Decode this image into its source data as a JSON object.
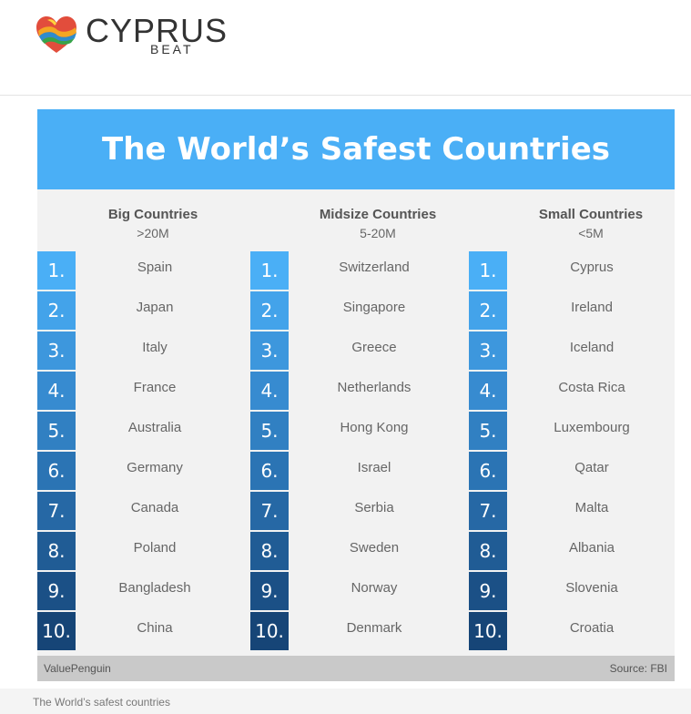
{
  "brand": {
    "name": "CYPRUS",
    "sub": "BEAT"
  },
  "infographic": {
    "title": "The World’s Safest Countries",
    "columns": [
      {
        "title": "Big Countries",
        "subtitle": ">20M",
        "countries": [
          "Spain",
          "Japan",
          "Italy",
          "France",
          "Australia",
          "Germany",
          "Canada",
          "Poland",
          "Bangladesh",
          "China"
        ]
      },
      {
        "title": "Midsize Countries",
        "subtitle": "5-20M",
        "countries": [
          "Switzerland",
          "Singapore",
          "Greece",
          "Netherlands",
          "Hong Kong",
          "Israel",
          "Serbia",
          "Sweden",
          "Norway",
          "Denmark"
        ]
      },
      {
        "title": "Small Countries",
        "subtitle": "<5M",
        "countries": [
          "Cyprus",
          "Ireland",
          "Iceland",
          "Costa Rica",
          "Luxembourg",
          "Qatar",
          "Malta",
          "Albania",
          "Slovenia",
          "Croatia"
        ]
      }
    ],
    "ranks": [
      "1.",
      "2.",
      "3.",
      "4.",
      "5.",
      "6.",
      "7.",
      "8.",
      "9.",
      "10."
    ],
    "rank_colors": [
      "#4aaff6",
      "#43a3ea",
      "#3d97dd",
      "#378bd0",
      "#3180c2",
      "#2b74b4",
      "#2668a5",
      "#205c95",
      "#1b5086",
      "#164577"
    ],
    "footer_left": "ValuePenguin",
    "footer_right": "Source: FBI"
  },
  "caption": "The World’s safest countries"
}
